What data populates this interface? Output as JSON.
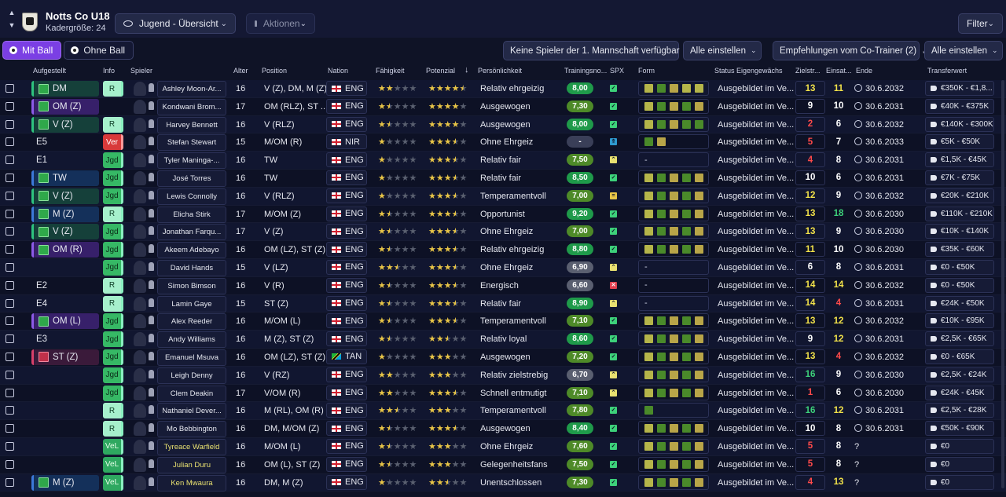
{
  "header": {
    "club_name": "Notts Co U18",
    "squad_size": "Kadergröße: 24",
    "view_dropdown": "Jugend - Übersicht",
    "actions_dropdown": "Aktionen",
    "filter": "Filter"
  },
  "tabs": {
    "with_ball": "Mit Ball",
    "without_ball": "Ohne Ball"
  },
  "toolbar": {
    "no_first_team": "Keine Spieler der 1. Mannschaft verfügbar",
    "set_all_1": "Alle einstellen",
    "recommendations": "Empfehlungen vom Co-Trainer (2)",
    "set_all_2": "Alle einstellen"
  },
  "columns": {
    "lineup": "Aufgestellt",
    "info": "Info",
    "player": "Spieler",
    "age": "Alter",
    "position": "Position",
    "nation": "Nation",
    "ability": "Fähigkeit",
    "potential": "Potenzial",
    "personality": "Persönlichkeit",
    "training": "Trainingsno...",
    "spx": "SPX",
    "form": "Form",
    "status": "Status Eigengewächs",
    "goals": "Zielstr...",
    "apps": "Einsat...",
    "end": "Ende",
    "value": "Transferwert"
  },
  "colors": {
    "accent": "#7b3fe4",
    "background": "#0f1326"
  },
  "players": [
    {
      "lineup": "DM",
      "kind": "green",
      "mark": "g",
      "info": "R",
      "name": "Ashley Moon-Ar...",
      "age": "16",
      "pos": "V (Z), DM, M (Z)",
      "nat": "ENG",
      "abil": 2,
      "pot": 4.5,
      "pers": "Relativ ehrgeizig",
      "train": "8,00",
      "spx": "up",
      "form": "abcaa",
      "status": "Ausgebildet im Ve...",
      "g": "13",
      "gc": "y",
      "a": "11",
      "ac": "y",
      "end": "30.6.2032",
      "fee": "€350K - €1,8..."
    },
    {
      "lineup": "OM (Z)",
      "kind": "purple",
      "mark": "g",
      "info": "",
      "name": "Kondwani Brom...",
      "age": "17",
      "pos": "OM (RLZ), ST ...",
      "nat": "ENG",
      "abil": 1.5,
      "pot": 4,
      "pers": "Ausgewogen",
      "train": "7,30",
      "spx": "up",
      "form": "abcbc",
      "status": "Ausgebildet im Ve...",
      "g": "9",
      "gc": "w",
      "a": "10",
      "ac": "w",
      "end": "30.6.2031",
      "fee": "€40K - €375K"
    },
    {
      "lineup": "V (Z)",
      "kind": "green",
      "mark": "g",
      "info": "R",
      "name": "Harvey Bennett",
      "age": "16",
      "pos": "V (RLZ)",
      "nat": "ENG",
      "abil": 1.5,
      "pot": 4,
      "pers": "Ausgewogen",
      "train": "8,00",
      "spx": "up",
      "form": "abcbb",
      "status": "Ausgebildet im Ve...",
      "g": "2",
      "gc": "r",
      "a": "6",
      "ac": "w",
      "end": "30.6.2032",
      "fee": "€140K - €300K"
    },
    {
      "lineup": "E5",
      "kind": "none",
      "mark": "",
      "info": "Ver",
      "name": "Stefan Stewart",
      "age": "15",
      "pos": "M/OM (R)",
      "nat": "NIR",
      "abil": 1,
      "pot": 3.5,
      "pers": "Ohne Ehrgeiz",
      "train": "-",
      "spx": "dup",
      "form": "bc",
      "status": "Ausgebildet im Ve...",
      "g": "5",
      "gc": "r",
      "a": "7",
      "ac": "w",
      "end": "30.6.2033",
      "fee": "€5K - €50K"
    },
    {
      "lineup": "E1",
      "kind": "none",
      "mark": "",
      "info": "Jgd",
      "name": "Tyler Maninga-...",
      "age": "16",
      "pos": "TW",
      "nat": "ENG",
      "abil": 1,
      "pot": 3.5,
      "pers": "Relativ fair",
      "train": "7,50",
      "spx": "cs",
      "form": "-",
      "status": "Ausgebildet im Ve...",
      "g": "4",
      "gc": "r",
      "a": "8",
      "ac": "w",
      "end": "30.6.2031",
      "fee": "€1,5K - €45K"
    },
    {
      "lineup": "TW",
      "kind": "blue",
      "mark": "g",
      "info": "Jgd",
      "name": "José Torres",
      "age": "16",
      "pos": "TW",
      "nat": "ENG",
      "abil": 1,
      "pot": 3.5,
      "pers": "Relativ fair",
      "train": "8,50",
      "spx": "up",
      "form": "abcbc",
      "status": "Ausgebildet im Ve...",
      "g": "10",
      "gc": "w",
      "a": "6",
      "ac": "w",
      "end": "30.6.2031",
      "fee": "€7K - €75K"
    },
    {
      "lineup": "V (Z)",
      "kind": "green",
      "mark": "g",
      "info": "Jgd",
      "name": "Lewis Connolly",
      "age": "16",
      "pos": "V (RLZ)",
      "nat": "ENG",
      "abil": 1,
      "pot": 3.5,
      "pers": "Temperamentvoll",
      "train": "7,00",
      "spx": "eq",
      "form": "abcbc",
      "status": "Ausgebildet im Ve...",
      "g": "12",
      "gc": "y",
      "a": "9",
      "ac": "w",
      "end": "30.6.2032",
      "fee": "€20K - €210K"
    },
    {
      "lineup": "M (Z)",
      "kind": "blue",
      "mark": "g",
      "info": "R",
      "name": "Elicha Stirk",
      "age": "17",
      "pos": "M/OM (Z)",
      "nat": "ENG",
      "abil": 1.5,
      "pot": 3.5,
      "pers": "Opportunist",
      "train": "9,20",
      "spx": "up",
      "form": "abcbc",
      "status": "Ausgebildet im Ve...",
      "g": "13",
      "gc": "y",
      "a": "18",
      "ac": "g",
      "end": "30.6.2030",
      "fee": "€110K - €210K"
    },
    {
      "lineup": "V (Z)",
      "kind": "green",
      "mark": "g",
      "info": "Jgd",
      "name": "Jonathan Farqu...",
      "age": "17",
      "pos": "V (Z)",
      "nat": "ENG",
      "abil": 1.5,
      "pot": 3.5,
      "pers": "Ohne Ehrgeiz",
      "train": "7,00",
      "spx": "up",
      "form": "abcbc",
      "status": "Ausgebildet im Ve...",
      "g": "13",
      "gc": "y",
      "a": "9",
      "ac": "w",
      "end": "30.6.2030",
      "fee": "€10K - €140K"
    },
    {
      "lineup": "OM (R)",
      "kind": "purple",
      "mark": "g",
      "info": "Jgd",
      "name": "Akeem Adebayo",
      "age": "16",
      "pos": "OM (LZ), ST (Z)",
      "nat": "ENG",
      "abil": 1.5,
      "pot": 3.5,
      "pers": "Relativ ehrgeizig",
      "train": "8,80",
      "spx": "up",
      "form": "abcbc",
      "status": "Ausgebildet im Ve...",
      "g": "11",
      "gc": "y",
      "a": "10",
      "ac": "w",
      "end": "30.6.2030",
      "fee": "€35K - €60K"
    },
    {
      "lineup": "",
      "kind": "none",
      "mark": "",
      "info": "Jgd",
      "name": "David Hands",
      "age": "15",
      "pos": "V (LZ)",
      "nat": "ENG",
      "abil": 2.5,
      "pot": 3.5,
      "pers": "Ohne Ehrgeiz",
      "train": "6,90",
      "spx": "cs",
      "form": "-",
      "status": "Ausgebildet im Ve...",
      "g": "6",
      "gc": "w",
      "a": "8",
      "ac": "w",
      "end": "30.6.2031",
      "fee": "€0 - €50K"
    },
    {
      "lineup": "E2",
      "kind": "none",
      "mark": "",
      "info": "R",
      "name": "Simon Bimson",
      "age": "16",
      "pos": "V (R)",
      "nat": "ENG",
      "abil": 1.5,
      "pot": 3.5,
      "pers": "Energisch",
      "train": "6,60",
      "spx": "x",
      "form": "-",
      "status": "Ausgebildet im Ve...",
      "g": "14",
      "gc": "y",
      "a": "14",
      "ac": "y",
      "end": "30.6.2032",
      "fee": "€0 - €50K"
    },
    {
      "lineup": "E4",
      "kind": "none",
      "mark": "",
      "info": "R",
      "name": "Lamin Gaye",
      "age": "15",
      "pos": "ST (Z)",
      "nat": "ENG",
      "abil": 1.5,
      "pot": 3.5,
      "pers": "Relativ fair",
      "train": "8,90",
      "spx": "cs",
      "form": "-",
      "status": "Ausgebildet im Ve...",
      "g": "14",
      "gc": "y",
      "a": "4",
      "ac": "r",
      "end": "30.6.2031",
      "fee": "€24K - €50K"
    },
    {
      "lineup": "OM (L)",
      "kind": "purple",
      "mark": "g",
      "info": "Jgd",
      "name": "Alex Reeder",
      "age": "16",
      "pos": "M/OM (L)",
      "nat": "ENG",
      "abil": 1.5,
      "pot": 3.5,
      "pers": "Temperamentvoll",
      "train": "7,10",
      "spx": "up",
      "form": "abcbc",
      "status": "Ausgebildet im Ve...",
      "g": "13",
      "gc": "y",
      "a": "12",
      "ac": "y",
      "end": "30.6.2032",
      "fee": "€10K - €95K"
    },
    {
      "lineup": "E3",
      "kind": "none",
      "mark": "",
      "info": "Jgd",
      "name": "Andy Williams",
      "age": "16",
      "pos": "M (Z), ST (Z)",
      "nat": "ENG",
      "abil": 1.5,
      "pot": 2.5,
      "pers": "Relativ loyal",
      "train": "8,60",
      "spx": "up",
      "form": "abcbc",
      "status": "Ausgebildet im Ve...",
      "g": "9",
      "gc": "w",
      "a": "12",
      "ac": "y",
      "end": "30.6.2031",
      "fee": "€2,5K - €65K"
    },
    {
      "lineup": "ST (Z)",
      "kind": "red",
      "mark": "r",
      "info": "Jgd",
      "name": "Emanuel Msuva",
      "age": "16",
      "pos": "OM (LZ), ST (Z)",
      "nat": "TAN",
      "abil": 1,
      "pot": 3,
      "pers": "Ausgewogen",
      "train": "7,20",
      "spx": "up",
      "form": "abcbc",
      "status": "Ausgebildet im Ve...",
      "g": "13",
      "gc": "y",
      "a": "4",
      "ac": "r",
      "end": "30.6.2032",
      "fee": "€0 - €65K"
    },
    {
      "lineup": "",
      "kind": "none",
      "mark": "",
      "info": "Jgd",
      "name": "Leigh Denny",
      "age": "16",
      "pos": "V (RZ)",
      "nat": "ENG",
      "abil": 2,
      "pot": 3,
      "pers": "Relativ zielstrebig",
      "train": "6,70",
      "spx": "cs",
      "form": "abcbc",
      "status": "Ausgebildet im Ve...",
      "g": "16",
      "gc": "g",
      "a": "9",
      "ac": "w",
      "end": "30.6.2030",
      "fee": "€2,5K - €24K"
    },
    {
      "lineup": "",
      "kind": "none",
      "mark": "",
      "info": "Jgd",
      "name": "Clem Deakin",
      "age": "17",
      "pos": "V/OM (R)",
      "nat": "ENG",
      "abil": 2,
      "pot": 3.5,
      "pers": "Schnell entmutigt",
      "train": "7,10",
      "spx": "cs",
      "form": "abcbc",
      "status": "Ausgebildet im Ve...",
      "g": "1",
      "gc": "r",
      "a": "6",
      "ac": "w",
      "end": "30.6.2030",
      "fee": "€24K - €45K"
    },
    {
      "lineup": "",
      "kind": "none",
      "mark": "",
      "info": "R",
      "name": "Nathaniel Dever...",
      "age": "16",
      "pos": "M (RL), OM (R)",
      "nat": "ENG",
      "abil": 2.5,
      "pot": 3,
      "pers": "Temperamentvoll",
      "train": "7,80",
      "spx": "up",
      "form": "b",
      "status": "Ausgebildet im Ve...",
      "g": "16",
      "gc": "g",
      "a": "12",
      "ac": "y",
      "end": "30.6.2031",
      "fee": "€2,5K - €28K"
    },
    {
      "lineup": "",
      "kind": "none",
      "mark": "",
      "info": "R",
      "name": "Mo Bebbington",
      "age": "16",
      "pos": "DM, M/OM (Z)",
      "nat": "ENG",
      "abil": 1.5,
      "pot": 3.5,
      "pers": "Ausgewogen",
      "train": "8,40",
      "spx": "up",
      "form": "abcbc",
      "status": "Ausgebildet im Ve...",
      "g": "10",
      "gc": "w",
      "a": "8",
      "ac": "w",
      "end": "30.6.2031",
      "fee": "€50K - €90K"
    },
    {
      "lineup": "",
      "kind": "none",
      "mark": "",
      "info": "VeL",
      "name": "Tyreace Warfield",
      "y": true,
      "age": "16",
      "pos": "M/OM (L)",
      "nat": "ENG",
      "abil": 1.5,
      "pot": 3,
      "pers": "Ohne Ehrgeiz",
      "train": "7,60",
      "spx": "up",
      "form": "abcbc",
      "status": "Ausgebildet im Ve...",
      "g": "5",
      "gc": "r",
      "a": "8",
      "ac": "w",
      "end": "?",
      "fee": "€0"
    },
    {
      "lineup": "",
      "kind": "none",
      "mark": "",
      "info": "VeL",
      "name": "Julian Duru",
      "y": true,
      "age": "16",
      "pos": "OM (L), ST (Z)",
      "nat": "ENG",
      "abil": 1.5,
      "pot": 3,
      "pers": "Gelegenheitsfans",
      "train": "7,50",
      "spx": "up",
      "form": "abcbc",
      "status": "Ausgebildet im Ve...",
      "g": "5",
      "gc": "r",
      "a": "8",
      "ac": "w",
      "end": "?",
      "fee": "€0"
    },
    {
      "lineup": "M (Z)",
      "kind": "blue",
      "mark": "g",
      "info": "VeL",
      "name": "Ken Mwaura",
      "y": true,
      "age": "16",
      "pos": "DM, M (Z)",
      "nat": "ENG",
      "abil": 1,
      "pot": 2.5,
      "pers": "Unentschlossen",
      "train": "7,30",
      "spx": "up",
      "form": "abcbc",
      "status": "Ausgebildet im Ve...",
      "g": "4",
      "gc": "r",
      "a": "13",
      "ac": "y",
      "end": "?",
      "fee": "€0"
    }
  ]
}
